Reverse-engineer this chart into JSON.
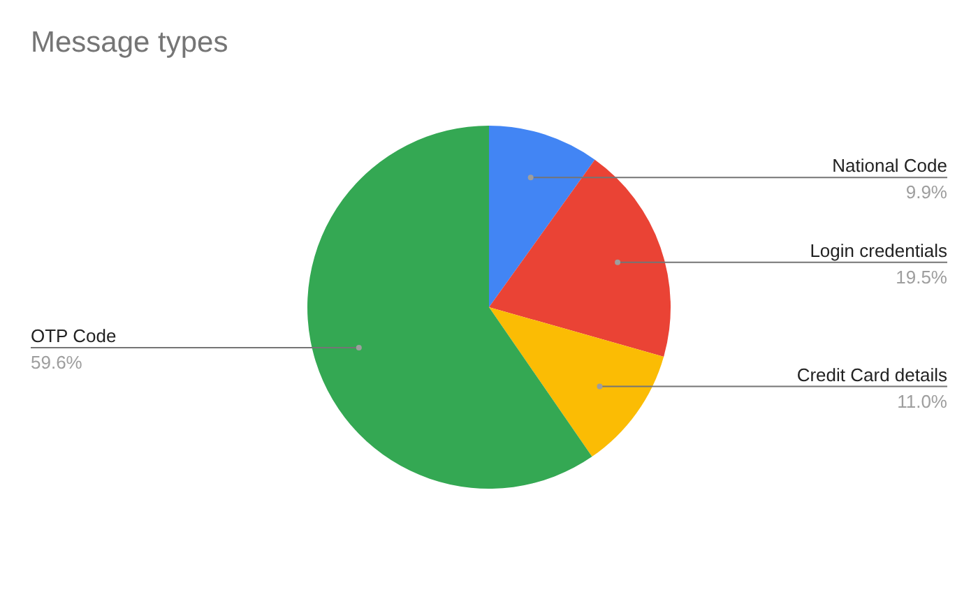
{
  "chart_data": {
    "type": "pie",
    "title": "Message types",
    "categories": [
      "National Code",
      "Login credentials",
      "Credit Card details",
      "OTP Code"
    ],
    "values": [
      9.9,
      19.5,
      11.0,
      59.6
    ],
    "colors": [
      "#4285f4",
      "#ea4335",
      "#fbbc04",
      "#34a853"
    ],
    "value_labels": [
      "9.9%",
      "19.5%",
      "11.0%",
      "59.6%"
    ]
  }
}
